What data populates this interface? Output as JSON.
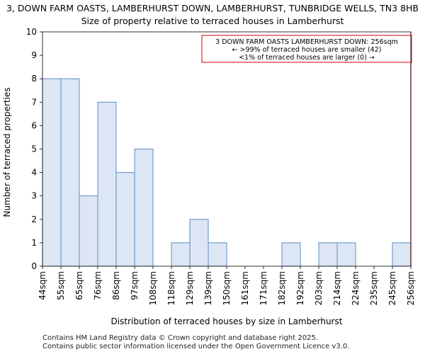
{
  "chart_data": {
    "type": "bar",
    "title": "3, DOWN FARM OASTS, LAMBERHURST DOWN, LAMBERHURST, TUNBRIDGE WELLS, TN3 8HB",
    "subtitle": "Size of property relative to terraced houses in Lamberhurst",
    "xlabel": "Distribution of terraced houses by size in Lamberhurst",
    "ylabel": "Number of terraced properties",
    "ylim": [
      0,
      10
    ],
    "yticks": [
      0,
      1,
      2,
      3,
      4,
      5,
      6,
      7,
      8,
      9,
      10
    ],
    "bin_edges_labels": [
      "44sqm",
      "55sqm",
      "65sqm",
      "76sqm",
      "86sqm",
      "97sqm",
      "108sqm",
      "118sqm",
      "129sqm",
      "139sqm",
      "150sqm",
      "161sqm",
      "171sqm",
      "182sqm",
      "192sqm",
      "203sqm",
      "214sqm",
      "224sqm",
      "235sqm",
      "245sqm",
      "256sqm"
    ],
    "values": [
      8,
      8,
      3,
      7,
      4,
      5,
      0,
      1,
      2,
      1,
      0,
      0,
      0,
      1,
      0,
      1,
      1,
      0,
      0,
      1
    ],
    "bar_color": "#dce6f4",
    "bar_edge_color": "#5b8cc6",
    "marker": {
      "value_index": 20,
      "color": "#cc0000",
      "annotation_lines": [
        "3 DOWN FARM OASTS LAMBERHURST DOWN: 256sqm",
        "← >99% of terraced houses are smaller (42)",
        "<1% of terraced houses are larger (0) →"
      ]
    }
  },
  "footer": {
    "line1": "Contains HM Land Registry data © Crown copyright and database right 2025.",
    "line2": "Contains public sector information licensed under the Open Government Licence v3.0."
  }
}
